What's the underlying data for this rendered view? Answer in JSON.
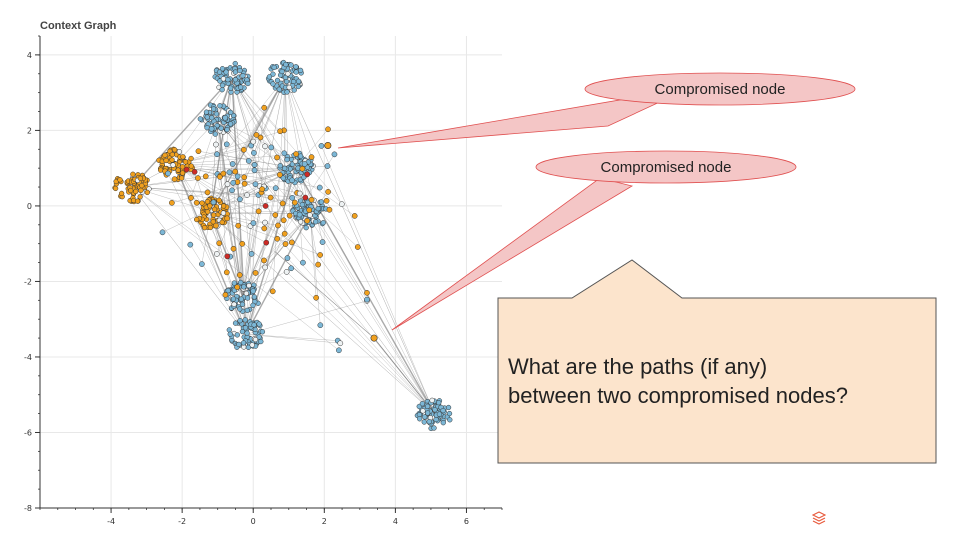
{
  "chart_data": {
    "type": "scatter",
    "title": "Context Graph",
    "xlim": [
      -6,
      7
    ],
    "ylim": [
      -8,
      4.5
    ],
    "x_ticks": [
      "-4",
      "-2",
      "0",
      "2",
      "4",
      "6"
    ],
    "y_ticks": [
      "4",
      "2",
      "0",
      "-2",
      "-4",
      "-6",
      "-8"
    ],
    "grid": true,
    "colors": {
      "node_blue": "#7cb7d6",
      "node_orange": "#f0a01e",
      "node_white": "#eef2f3",
      "node_red": "#cc2b26",
      "edge": "#888888"
    },
    "clusters": [
      {
        "x": -3.4,
        "y": 0.5,
        "color": "orange"
      },
      {
        "x": -2.2,
        "y": 1.1,
        "color": "orange"
      },
      {
        "x": -0.6,
        "y": 3.4,
        "color": "blue"
      },
      {
        "x": 0.9,
        "y": 3.4,
        "color": "blue"
      },
      {
        "x": -1.0,
        "y": 2.3,
        "color": "blue"
      },
      {
        "x": 1.2,
        "y": 1.0,
        "color": "blue"
      },
      {
        "x": 1.6,
        "y": -0.2,
        "color": "blue"
      },
      {
        "x": -0.3,
        "y": -2.4,
        "color": "blue"
      },
      {
        "x": -0.2,
        "y": -3.4,
        "color": "blue"
      },
      {
        "x": 5.1,
        "y": -5.5,
        "color": "blue"
      },
      {
        "x": -1.2,
        "y": -0.2,
        "color": "orange"
      }
    ],
    "compromised_nodes": [
      {
        "x": 2.1,
        "y": 1.6
      },
      {
        "x": 3.4,
        "y": -3.5
      }
    ]
  },
  "callouts": [
    {
      "label": "Compromised node"
    },
    {
      "label": "Compromised node"
    }
  ],
  "question_box": {
    "line1": "What are the paths (if any)",
    "line2": "between two compromised nodes?"
  },
  "logo": {
    "icon": "stacked-layers-icon",
    "color": "#e85a3c"
  }
}
